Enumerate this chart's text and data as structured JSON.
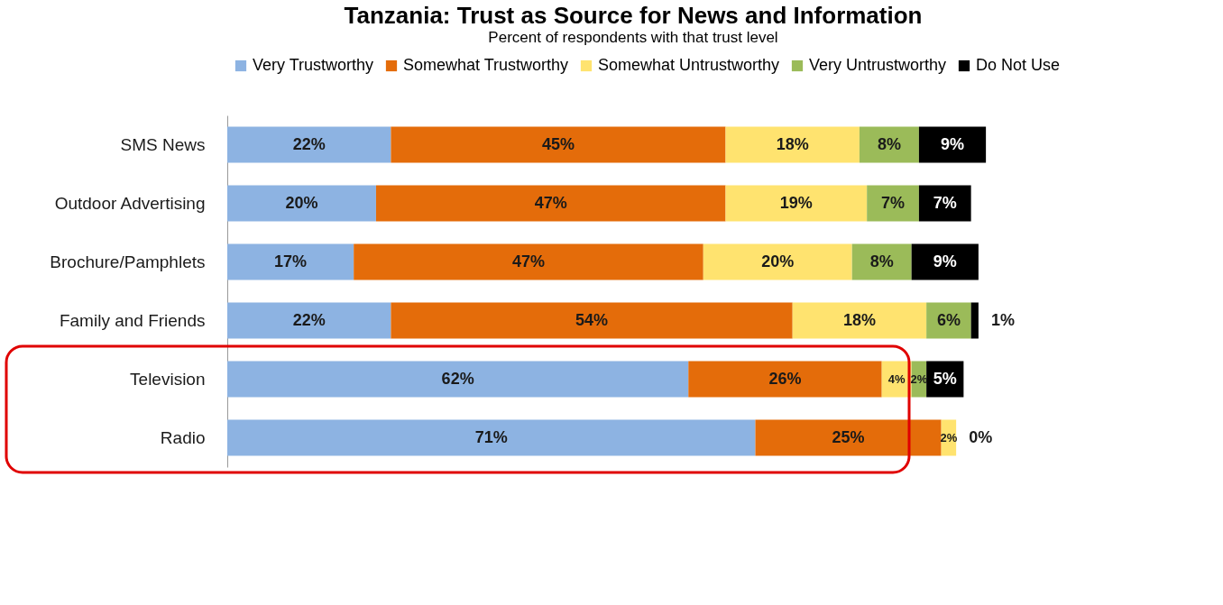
{
  "chart_data": {
    "type": "bar",
    "orientation": "horizontal",
    "stacked": true,
    "title": "Tanzania: Trust as Source for News and Information",
    "subtitle": "Percent of respondents with that trust level",
    "legend": "top",
    "categories": [
      "SMS News",
      "Outdoor Advertising",
      "Brochure/Pamphlets",
      "Family and Friends",
      "Television",
      "Radio"
    ],
    "series": [
      {
        "name": "Very Trustworthy",
        "color": "#8db3e2",
        "values": [
          22,
          20,
          17,
          22,
          62,
          71
        ],
        "value_labels": [
          "22%",
          "20%",
          "17%",
          "22%",
          "62%",
          "71%"
        ]
      },
      {
        "name": "Somewhat Trustworthy",
        "color": "#e46c0a",
        "values": [
          45,
          47,
          47,
          54,
          26,
          25
        ],
        "value_labels": [
          "45%",
          "47%",
          "47%",
          "54%",
          "26%",
          "25%"
        ]
      },
      {
        "name": "Somewhat Untrustworthy",
        "color": "#ffe36f",
        "values": [
          18,
          19,
          20,
          18,
          4,
          2
        ],
        "value_labels": [
          "18%",
          "19%",
          "20%",
          "18%",
          "4%",
          "2%"
        ]
      },
      {
        "name": "Very Untrustworthy",
        "color": "#9bbb59",
        "values": [
          8,
          7,
          8,
          6,
          2,
          null
        ],
        "value_labels": [
          "8%",
          "7%",
          "8%",
          "6%",
          "2%",
          null
        ]
      },
      {
        "name": "Do Not Use",
        "color": "#000000",
        "values": [
          9,
          7,
          9,
          1,
          5,
          0
        ],
        "value_labels": [
          "9%",
          "7%",
          "9%",
          "1%",
          "5%",
          "0%"
        ]
      }
    ]
  }
}
